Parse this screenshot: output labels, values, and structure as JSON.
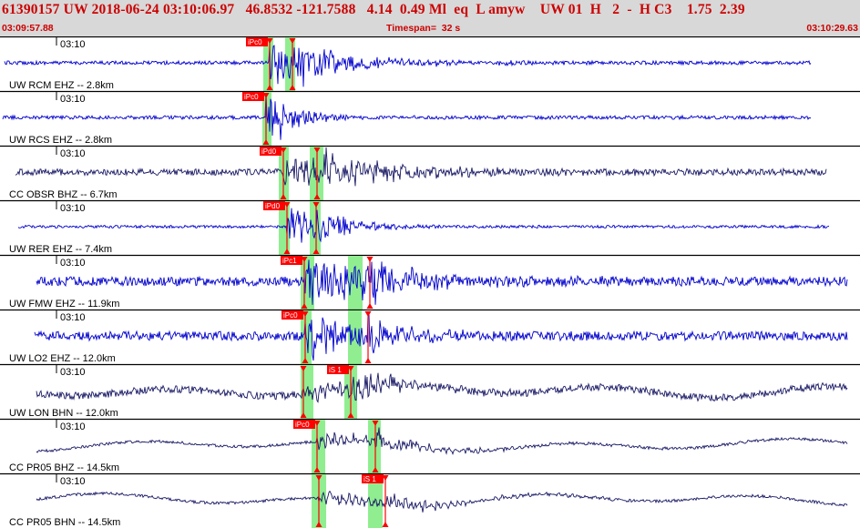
{
  "header": {
    "title": "61390157 UW 2018-06-24 03:10:06.97   46.8532 -121.7588   4.14  0.49 Ml  eq  L amyw    UW 01  H   2  -  H C3    1.75  2.39",
    "start_time": "03:09:57.88",
    "timespan": "Timespan=  32 s",
    "end_time": "03:10:29.63"
  },
  "colors": {
    "header_bg": "#d8d8d8",
    "header_text": "#cc0000",
    "blue_trace": "#0000cc",
    "navy_trace": "#1a1a66",
    "pick_window": "#90ee90",
    "pick_marker": "#ff0000"
  },
  "traces": [
    {
      "time_label": "03:10",
      "station": "UW RCM EHZ -- 2.8km",
      "color": "blue",
      "picks": [
        {
          "label": "iPc0",
          "phase": "P"
        },
        {
          "label": "",
          "phase": "S"
        }
      ]
    },
    {
      "time_label": "03:10",
      "station": "UW RCS EHZ -- 2.8km",
      "color": "blue",
      "picks": [
        {
          "label": "iPc0",
          "phase": "P"
        }
      ]
    },
    {
      "time_label": "03:10",
      "station": "CC OBSR BHZ -- 6.7km",
      "color": "navy",
      "picks": [
        {
          "label": "iPd0",
          "phase": "P"
        },
        {
          "label": "",
          "phase": "S"
        }
      ]
    },
    {
      "time_label": "03:10",
      "station": "UW RER EHZ -- 7.4km",
      "color": "blue",
      "picks": [
        {
          "label": "iPd0",
          "phase": "P"
        },
        {
          "label": "",
          "phase": "S"
        }
      ]
    },
    {
      "time_label": "03:10",
      "station": "UW FMW EHZ -- 11.9km",
      "color": "blue",
      "picks": [
        {
          "label": "iPc1",
          "phase": "P"
        },
        {
          "label": "",
          "phase": "S"
        }
      ]
    },
    {
      "time_label": "03:10",
      "station": "UW LO2 EHZ -- 12.0km",
      "color": "blue",
      "picks": [
        {
          "label": "iPc0",
          "phase": "P"
        },
        {
          "label": "",
          "phase": "S"
        }
      ]
    },
    {
      "time_label": "03:10",
      "station": "UW LON BHN -- 12.0km",
      "color": "navy",
      "picks": [
        {
          "label": "",
          "phase": "P"
        },
        {
          "label": "iS 1",
          "phase": "S"
        }
      ]
    },
    {
      "time_label": "03:10",
      "station": "CC PR05 BHZ -- 14.5km",
      "color": "navy",
      "picks": [
        {
          "label": "iPc0",
          "phase": "P"
        },
        {
          "label": "",
          "phase": "S"
        }
      ]
    },
    {
      "time_label": "03:10",
      "station": "CC PR05 BHN -- 14.5km",
      "color": "navy",
      "picks": [
        {
          "label": "",
          "phase": "P"
        },
        {
          "label": "iS 1",
          "phase": "S"
        }
      ]
    }
  ]
}
